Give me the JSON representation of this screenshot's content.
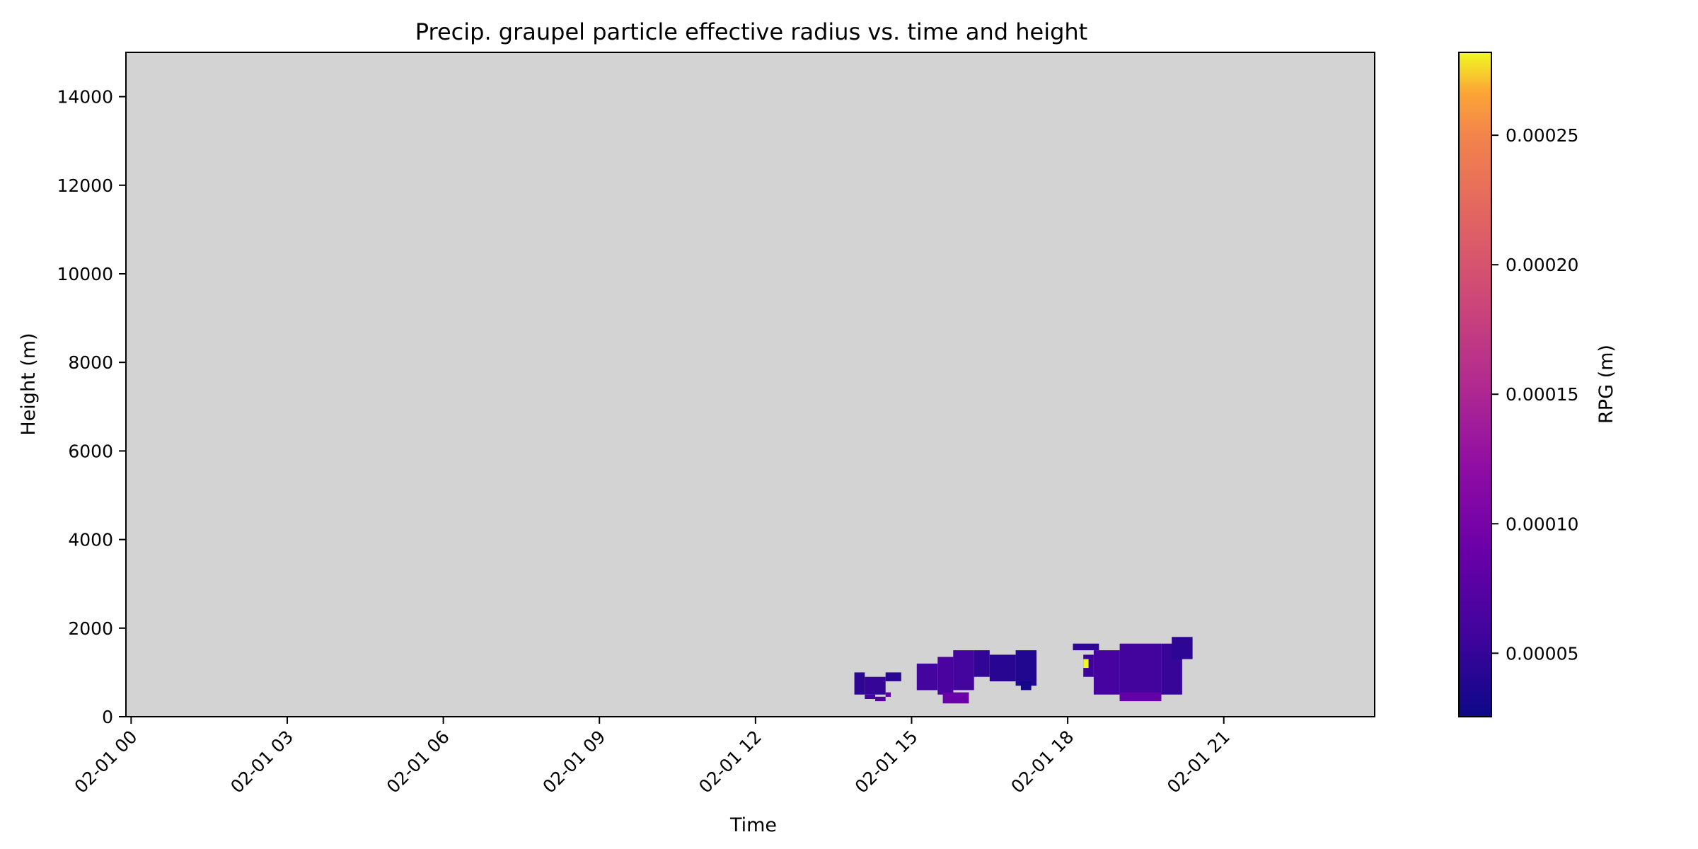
{
  "chart_data": {
    "type": "heatmap",
    "title": "Precip. graupel particle effective radius vs. time and height",
    "xlabel": "Time",
    "ylabel": "Height (m)",
    "x_range_hours": [
      -0.1,
      23.9
    ],
    "x_ticks": [
      {
        "hour": 0,
        "label": "02-01 00"
      },
      {
        "hour": 3,
        "label": "02-01 03"
      },
      {
        "hour": 6,
        "label": "02-01 06"
      },
      {
        "hour": 9,
        "label": "02-01 09"
      },
      {
        "hour": 12,
        "label": "02-01 12"
      },
      {
        "hour": 15,
        "label": "02-01 15"
      },
      {
        "hour": 18,
        "label": "02-01 18"
      },
      {
        "hour": 21,
        "label": "02-01 21"
      }
    ],
    "ylim": [
      0,
      15000
    ],
    "y_ticks": [
      0,
      2000,
      4000,
      6000,
      8000,
      10000,
      12000,
      14000
    ],
    "missing_color": "#d3d3d3",
    "colorbar": {
      "label": "RPG (m)",
      "colormap": "plasma",
      "range": [
        2.55e-05,
        0.000282
      ],
      "ticks": [
        {
          "value": 5e-05,
          "label": "0.00005"
        },
        {
          "value": 0.0001,
          "label": "0.00010"
        },
        {
          "value": 0.00015,
          "label": "0.00015"
        },
        {
          "value": 0.0002,
          "label": "0.00020"
        },
        {
          "value": 0.00025,
          "label": "0.00025"
        }
      ]
    },
    "cells": [
      {
        "t0": 13.9,
        "t1": 14.1,
        "h0": 500,
        "h1": 1000,
        "v": 4.5e-05
      },
      {
        "t0": 14.1,
        "t1": 14.5,
        "h0": 500,
        "h1": 900,
        "v": 5e-05
      },
      {
        "t0": 14.1,
        "t1": 14.3,
        "h0": 400,
        "h1": 500,
        "v": 5.8e-05
      },
      {
        "t0": 14.3,
        "t1": 14.5,
        "h0": 350,
        "h1": 450,
        "v": 7e-05
      },
      {
        "t0": 14.5,
        "t1": 14.6,
        "h0": 450,
        "h1": 550,
        "v": 8e-05
      },
      {
        "t0": 14.5,
        "t1": 14.8,
        "h0": 800,
        "h1": 1000,
        "v": 4.2e-05
      },
      {
        "t0": 15.1,
        "t1": 15.5,
        "h0": 600,
        "h1": 1200,
        "v": 6e-05
      },
      {
        "t0": 15.5,
        "t1": 15.8,
        "h0": 500,
        "h1": 1350,
        "v": 6.5e-05
      },
      {
        "t0": 15.8,
        "t1": 16.2,
        "h0": 600,
        "h1": 1500,
        "v": 6e-05
      },
      {
        "t0": 15.6,
        "t1": 16.1,
        "h0": 300,
        "h1": 550,
        "v": 9e-05
      },
      {
        "t0": 16.2,
        "t1": 16.5,
        "h0": 900,
        "h1": 1500,
        "v": 4.8e-05
      },
      {
        "t0": 16.5,
        "t1": 17.0,
        "h0": 800,
        "h1": 1400,
        "v": 4.2e-05
      },
      {
        "t0": 17.0,
        "t1": 17.4,
        "h0": 700,
        "h1": 1500,
        "v": 3.8e-05
      },
      {
        "t0": 17.1,
        "t1": 17.3,
        "h0": 600,
        "h1": 800,
        "v": 3e-05
      },
      {
        "t0": 18.1,
        "t1": 18.6,
        "h0": 1500,
        "h1": 1650,
        "v": 4.5e-05
      },
      {
        "t0": 18.3,
        "t1": 18.5,
        "h0": 900,
        "h1": 1400,
        "v": 5.5e-05
      },
      {
        "t0": 18.3,
        "t1": 18.4,
        "h0": 1100,
        "h1": 1300,
        "v": 0.000282
      },
      {
        "t0": 18.5,
        "t1": 19.0,
        "h0": 500,
        "h1": 1500,
        "v": 6.2e-05
      },
      {
        "t0": 19.0,
        "t1": 19.8,
        "h0": 400,
        "h1": 1650,
        "v": 5.8e-05
      },
      {
        "t0": 19.0,
        "t1": 19.8,
        "h0": 350,
        "h1": 550,
        "v": 8.5e-05
      },
      {
        "t0": 19.8,
        "t1": 20.2,
        "h0": 500,
        "h1": 1650,
        "v": 5.2e-05
      },
      {
        "t0": 20.0,
        "t1": 20.4,
        "h0": 1300,
        "h1": 1800,
        "v": 4.5e-05
      }
    ]
  }
}
